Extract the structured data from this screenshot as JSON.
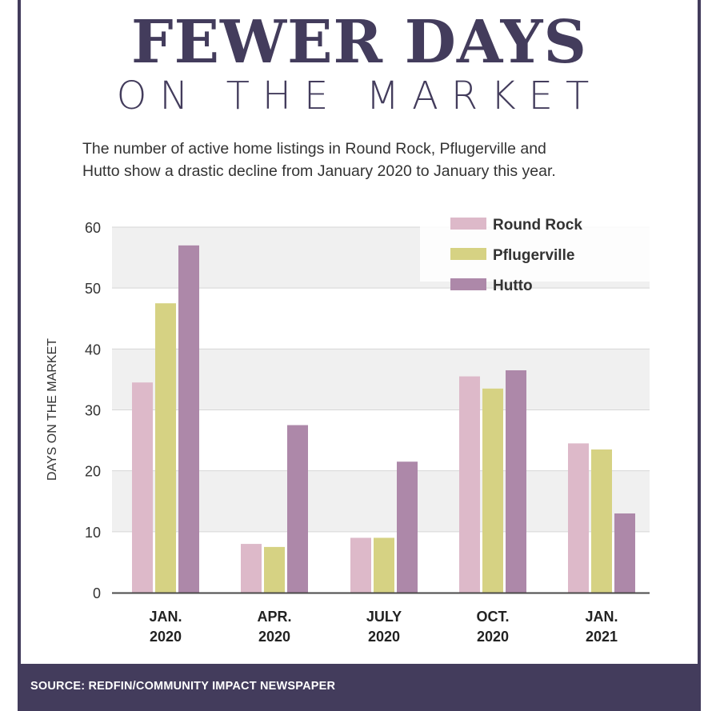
{
  "header": {
    "title": "FEWER DAYS",
    "subtitle": "ON THE MARKET",
    "description_line1": "The number of active home listings in Round Rock, Pflugerville and",
    "description_line2": "Hutto show a drastic decline from January 2020 to January this year."
  },
  "footer": {
    "source": "SOURCE: REDFIN/COMMUNITY IMPACT NEWSPAPER"
  },
  "chart_data": {
    "type": "bar",
    "ylabel": "DAYS ON THE MARKET",
    "xlabel": "",
    "ylim": [
      0,
      60
    ],
    "yticks": [
      "0",
      "10",
      "20",
      "30",
      "40",
      "50",
      "60"
    ],
    "categories": [
      [
        "JAN.",
        "2020"
      ],
      [
        "APR.",
        "2020"
      ],
      [
        "JULY",
        "2020"
      ],
      [
        "OCT.",
        "2020"
      ],
      [
        "JAN.",
        "2021"
      ]
    ],
    "series": [
      {
        "name": "Round Rock",
        "color": "#ddb9c9",
        "values": [
          34.5,
          8,
          9,
          35.5,
          24.5
        ]
      },
      {
        "name": "Pflugerville",
        "color": "#d6d283",
        "values": [
          47.5,
          7.5,
          9,
          33.5,
          23.5
        ]
      },
      {
        "name": "Hutto",
        "color": "#ad88a9",
        "values": [
          57,
          27.5,
          21.5,
          36.5,
          13
        ]
      }
    ],
    "legend_position": "top-right",
    "grid": true
  }
}
